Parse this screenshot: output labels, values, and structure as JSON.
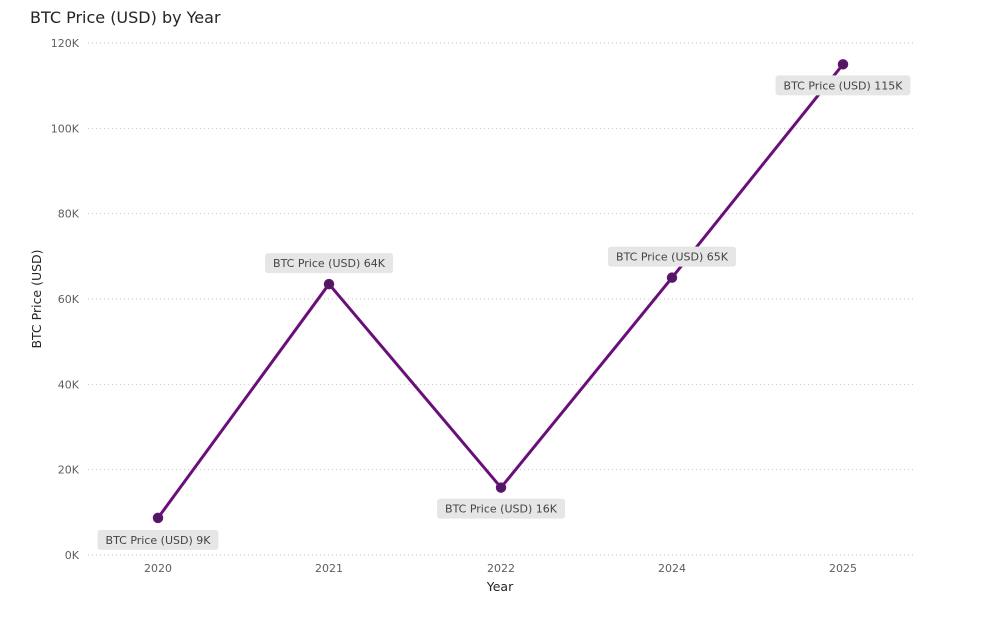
{
  "chart_data": {
    "type": "line",
    "title": "BTC Price (USD) by Year",
    "xlabel": "Year",
    "ylabel": "BTC Price (USD)",
    "categories": [
      "2020",
      "2021",
      "2022",
      "2024",
      "2025"
    ],
    "series": [
      {
        "name": "BTC Price (USD)",
        "values": [
          8700,
          63500,
          15800,
          65000,
          115000
        ],
        "labels": [
          "BTC Price (USD) 9K",
          "BTC Price (USD) 64K",
          "BTC Price (USD) 16K",
          "BTC Price (USD) 65K",
          "BTC Price (USD) 115K"
        ],
        "color": "#6a0f7a"
      }
    ],
    "ylim": [
      0,
      120000
    ],
    "yticks": [
      0,
      20000,
      40000,
      60000,
      80000,
      100000,
      120000
    ],
    "ytick_labels": [
      "0K",
      "20K",
      "40K",
      "60K",
      "80K",
      "100K",
      "120K"
    ],
    "grid": "horizontal-dotted",
    "legend": "none"
  }
}
